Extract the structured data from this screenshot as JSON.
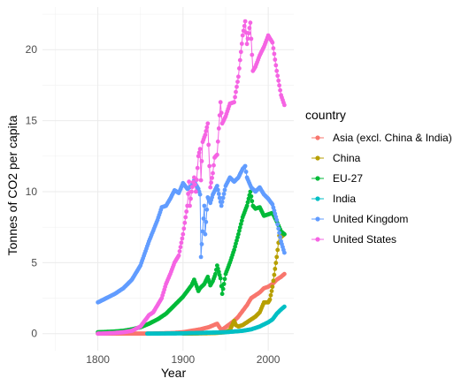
{
  "chart_data": {
    "type": "line",
    "xlabel": "Year",
    "ylabel": "Tonnes of CO2 per capita",
    "xlim": [
      1735,
      2030
    ],
    "ylim": [
      -1.2,
      23
    ],
    "x_ticks": [
      1800,
      1900,
      2000
    ],
    "x_tick_labels": [
      "1800",
      "1900",
      "2000"
    ],
    "y_ticks": [
      0,
      5,
      10,
      15,
      20
    ],
    "y_tick_labels": [
      "0",
      "5",
      "10",
      "15",
      "20"
    ],
    "grid": true,
    "legend_title": "country",
    "legend_position": "right",
    "series": [
      {
        "name": "Asia (excl. China & India)",
        "color": "#F8766D",
        "x": [
          1800,
          1830,
          1850,
          1860,
          1870,
          1880,
          1890,
          1900,
          1910,
          1920,
          1930,
          1940,
          1945,
          1950,
          1960,
          1965,
          1970,
          1975,
          1980,
          1985,
          1990,
          1995,
          2000,
          2005,
          2010,
          2015,
          2019
        ],
        "y": [
          0.0,
          0.0,
          0.0,
          0.0,
          0.02,
          0.03,
          0.05,
          0.1,
          0.2,
          0.3,
          0.45,
          0.7,
          0.25,
          0.45,
          0.9,
          1.2,
          1.6,
          2.0,
          2.5,
          2.7,
          2.9,
          3.2,
          3.3,
          3.5,
          3.8,
          4.0,
          4.2
        ]
      },
      {
        "name": "China",
        "color": "#B79F00",
        "x": [
          1900,
          1910,
          1920,
          1930,
          1940,
          1950,
          1955,
          1960,
          1962,
          1965,
          1970,
          1975,
          1980,
          1985,
          1990,
          1995,
          2000,
          2002,
          2005,
          2010,
          2013,
          2015,
          2019
        ],
        "y": [
          0.0,
          0.0,
          0.02,
          0.03,
          0.05,
          0.1,
          0.25,
          0.9,
          0.6,
          0.5,
          0.6,
          0.8,
          1.0,
          1.2,
          1.5,
          2.2,
          2.2,
          2.4,
          3.3,
          5.4,
          6.9,
          6.8,
          7.0
        ]
      },
      {
        "name": "EU-27",
        "color": "#00BA38",
        "x": [
          1800,
          1810,
          1820,
          1830,
          1840,
          1850,
          1860,
          1870,
          1880,
          1890,
          1900,
          1905,
          1910,
          1913,
          1918,
          1920,
          1925,
          1929,
          1932,
          1935,
          1938,
          1940,
          1944,
          1946,
          1950,
          1955,
          1960,
          1965,
          1970,
          1975,
          1979,
          1982,
          1985,
          1990,
          1995,
          2000,
          2005,
          2010,
          2015,
          2019
        ],
        "y": [
          0.1,
          0.12,
          0.15,
          0.2,
          0.3,
          0.45,
          0.7,
          1.0,
          1.4,
          2.0,
          2.6,
          3.0,
          3.4,
          3.8,
          3.0,
          3.2,
          3.5,
          4.0,
          3.4,
          3.7,
          4.2,
          4.8,
          3.9,
          2.8,
          4.2,
          5.0,
          5.9,
          7.0,
          8.2,
          9.0,
          10.0,
          9.0,
          8.8,
          8.9,
          8.3,
          8.4,
          8.5,
          7.9,
          7.2,
          7.0
        ]
      },
      {
        "name": "India",
        "color": "#00BFC4",
        "x": [
          1858,
          1870,
          1880,
          1900,
          1920,
          1940,
          1950,
          1960,
          1970,
          1980,
          1990,
          2000,
          2005,
          2010,
          2015,
          2019
        ],
        "y": [
          0.0,
          0.0,
          0.01,
          0.02,
          0.05,
          0.08,
          0.1,
          0.15,
          0.2,
          0.3,
          0.5,
          0.8,
          1.0,
          1.4,
          1.7,
          1.9
        ]
      },
      {
        "name": "United Kingdom",
        "color": "#619CFF",
        "x": [
          1800,
          1810,
          1820,
          1830,
          1840,
          1850,
          1860,
          1870,
          1875,
          1880,
          1885,
          1890,
          1895,
          1900,
          1905,
          1910,
          1913,
          1915,
          1918,
          1920,
          1921,
          1925,
          1926,
          1929,
          1932,
          1935,
          1940,
          1945,
          1950,
          1955,
          1960,
          1965,
          1970,
          1973,
          1975,
          1980,
          1985,
          1990,
          1995,
          2000,
          2005,
          2010,
          2015,
          2019
        ],
        "y": [
          2.2,
          2.5,
          2.8,
          3.2,
          3.8,
          4.8,
          6.5,
          8.0,
          8.9,
          9.0,
          9.5,
          10.1,
          9.9,
          10.6,
          10.2,
          10.4,
          10.8,
          10.5,
          10.2,
          9.8,
          5.4,
          9.0,
          7.0,
          9.6,
          9.2,
          9.8,
          10.4,
          9.0,
          10.4,
          11.0,
          10.7,
          11.0,
          11.6,
          11.8,
          11.0,
          10.3,
          10.0,
          10.3,
          9.8,
          9.5,
          9.1,
          8.0,
          6.5,
          5.7
        ]
      },
      {
        "name": "United States",
        "color": "#F564E3",
        "x": [
          1800,
          1810,
          1820,
          1830,
          1840,
          1850,
          1855,
          1860,
          1865,
          1870,
          1875,
          1880,
          1885,
          1890,
          1895,
          1900,
          1905,
          1907,
          1908,
          1910,
          1913,
          1915,
          1918,
          1920,
          1921,
          1923,
          1926,
          1929,
          1932,
          1935,
          1937,
          1940,
          1944,
          1946,
          1950,
          1955,
          1960,
          1965,
          1970,
          1973,
          1975,
          1979,
          1982,
          1985,
          1990,
          1995,
          2000,
          2005,
          2010,
          2015,
          2019
        ],
        "y": [
          0.0,
          0.02,
          0.05,
          0.1,
          0.2,
          0.5,
          0.9,
          1.3,
          1.5,
          2.0,
          2.5,
          3.5,
          4.2,
          5.0,
          5.5,
          7.0,
          9.0,
          10.7,
          9.0,
          10.0,
          11.0,
          10.0,
          12.5,
          13.0,
          10.8,
          13.5,
          14.0,
          14.8,
          10.3,
          11.3,
          12.4,
          12.6,
          16.3,
          14.8,
          15.3,
          16.2,
          16.3,
          18.1,
          21.0,
          22.0,
          20.4,
          21.9,
          18.5,
          18.8,
          19.6,
          20.2,
          21.0,
          20.5,
          18.5,
          16.8,
          16.1
        ]
      }
    ]
  }
}
